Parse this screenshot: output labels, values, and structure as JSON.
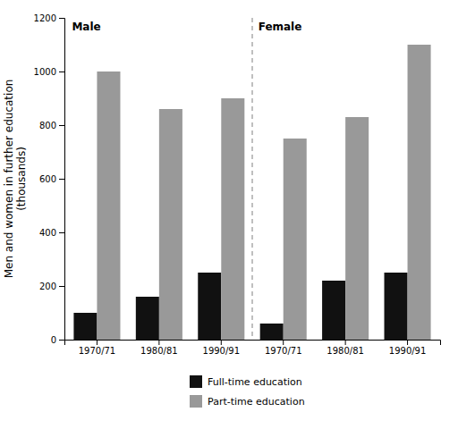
{
  "chart_data": {
    "type": "bar",
    "ylabel": "Men and women in further education\n(thousands)",
    "categories": [
      "1970/71",
      "1980/81",
      "1990/91",
      "1970/71",
      "1980/81",
      "1990/91"
    ],
    "series": [
      {
        "name": "Full-time education",
        "color": "#111111",
        "values": [
          100,
          160,
          250,
          60,
          220,
          250
        ]
      },
      {
        "name": "Part-time education",
        "color": "#999999",
        "values": [
          1000,
          860,
          900,
          750,
          830,
          1100
        ]
      }
    ],
    "annotations": [
      "Male",
      "Female"
    ],
    "ylim": [
      0,
      1200
    ],
    "yticks": [
      0,
      200,
      400,
      600,
      800,
      1000,
      1200
    ],
    "grid": false,
    "legend": "bottom"
  }
}
